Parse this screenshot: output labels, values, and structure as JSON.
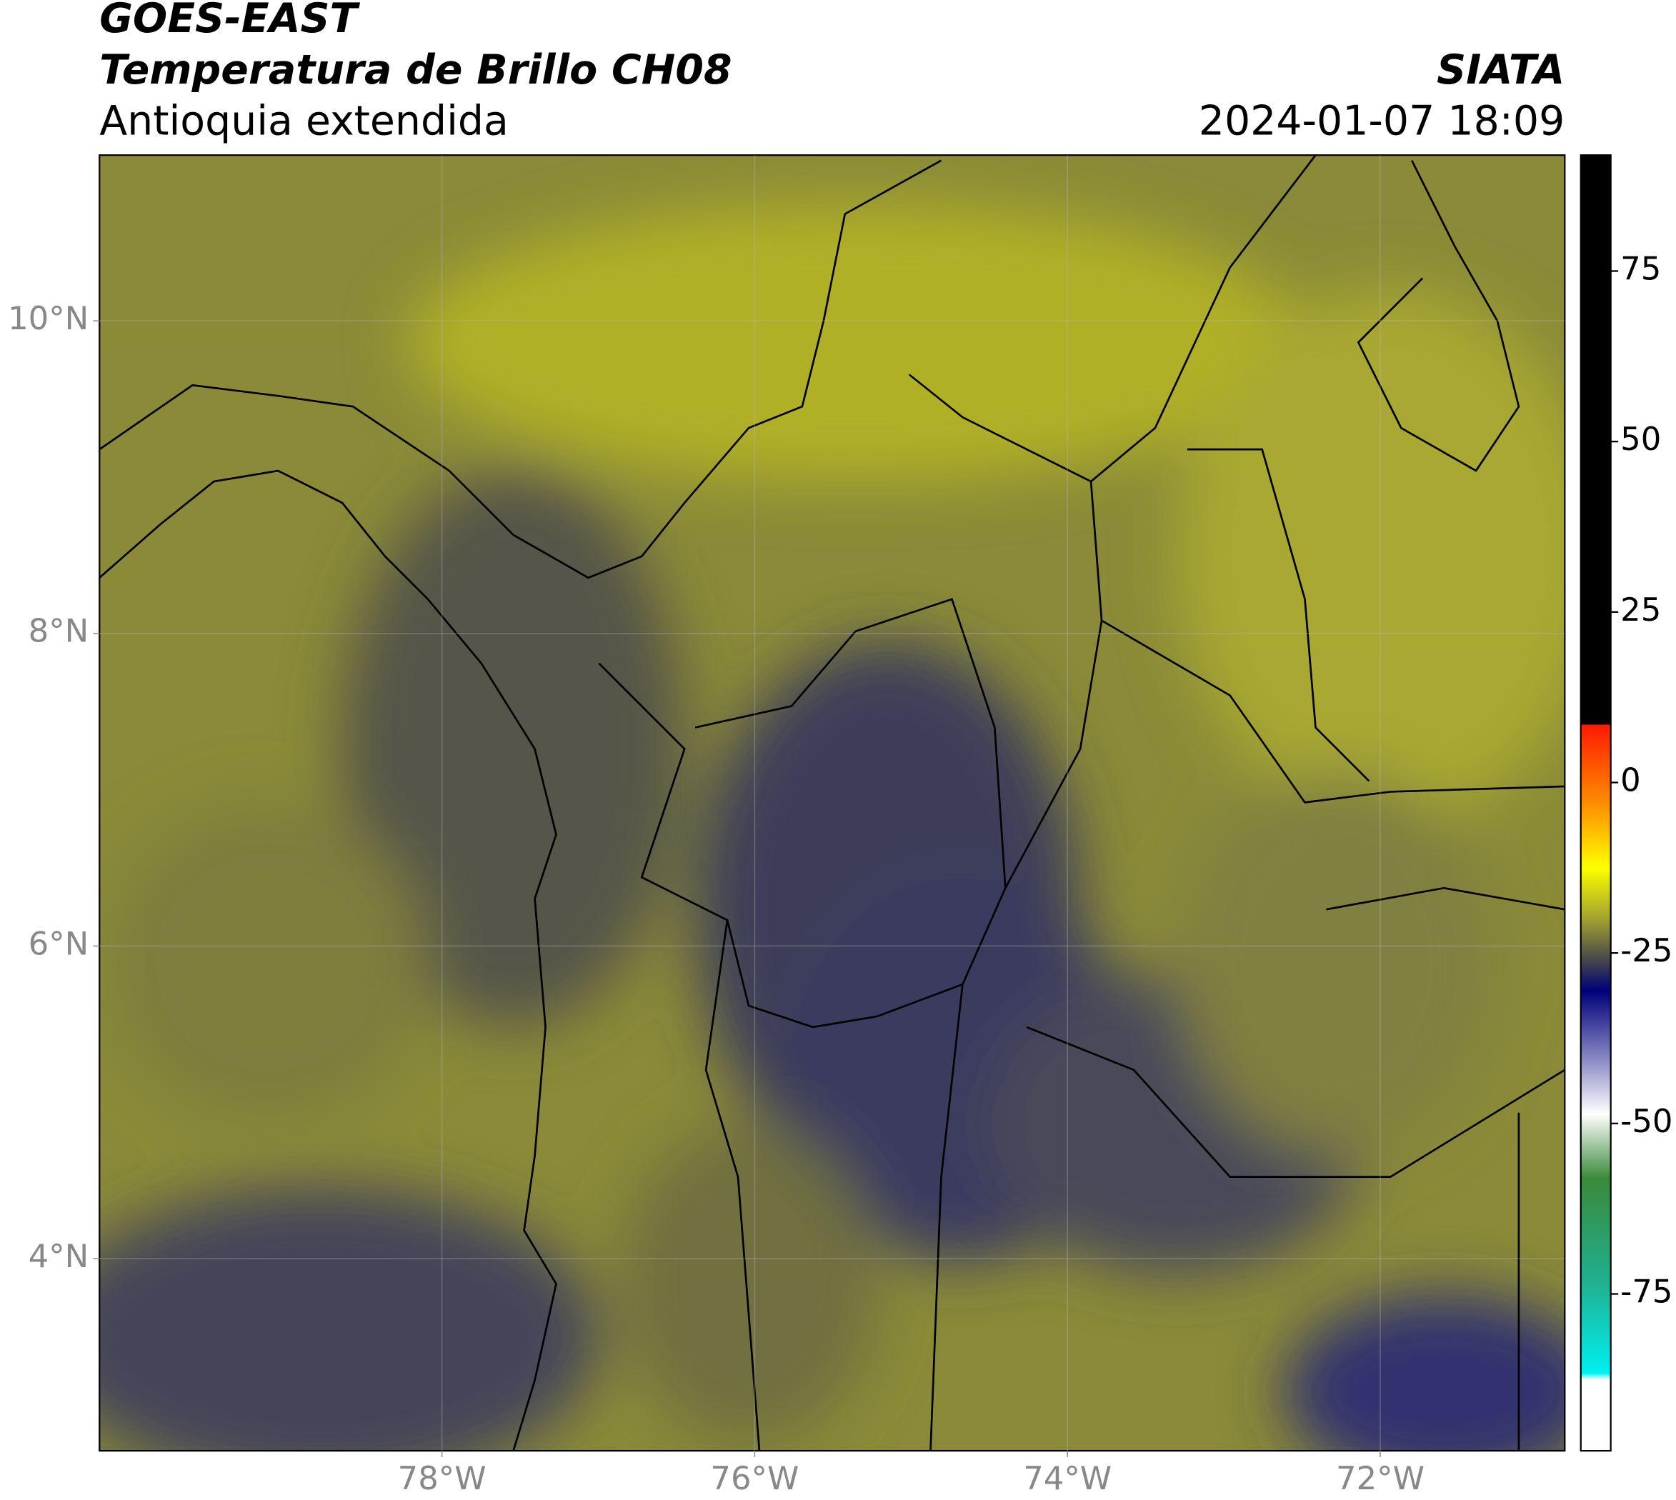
{
  "header": {
    "title": "GOES-EAST",
    "subtitle": "Temperatura de Brillo CH08",
    "region": "Antioquia extendida",
    "source": "SIATA",
    "datetime": "2024-01-07 18:09"
  },
  "map": {
    "xlim": [
      -80.19,
      -70.82
    ],
    "ylim": [
      2.77,
      11.06
    ],
    "xticks": [
      {
        "value": -78,
        "label": "78°W"
      },
      {
        "value": -76,
        "label": "76°W"
      },
      {
        "value": -74,
        "label": "74°W"
      },
      {
        "value": -72,
        "label": "72°W"
      }
    ],
    "yticks": [
      {
        "value": 10,
        "label": "10°N"
      },
      {
        "value": 8,
        "label": "8°N"
      },
      {
        "value": 6,
        "label": "6°N"
      },
      {
        "value": 4,
        "label": "4°N"
      }
    ]
  },
  "colorbar": {
    "lim": [
      -98,
      92
    ],
    "ticks": [
      75,
      50,
      25,
      0,
      -25,
      -50,
      -75
    ]
  }
}
